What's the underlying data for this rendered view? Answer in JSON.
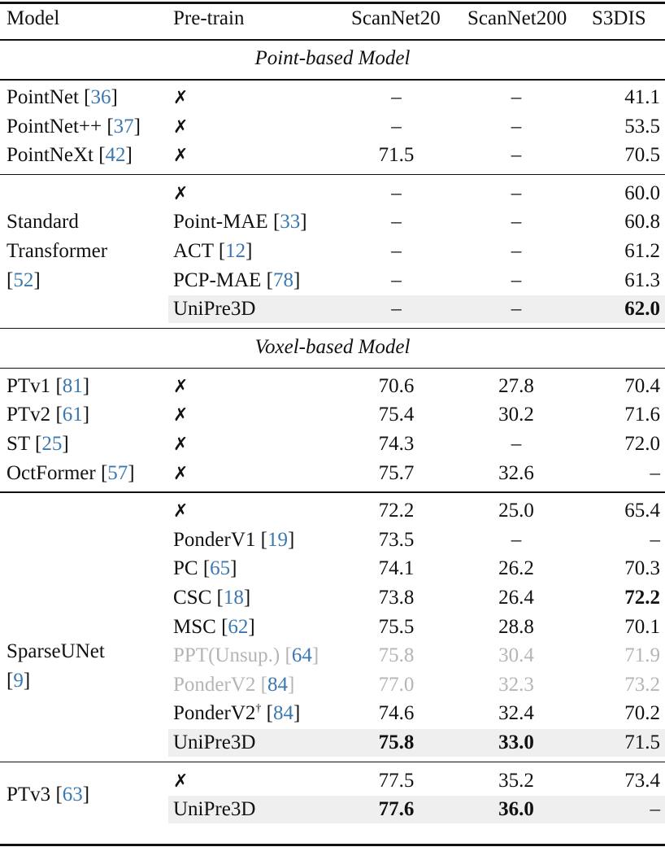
{
  "table": {
    "columns": [
      "Model",
      "Pre-train",
      "ScanNet20",
      "ScanNet200",
      "S3DIS"
    ],
    "sections": [
      {
        "title": "Point-based Model",
        "groups": [
          {
            "model": "PointNet",
            "cite": "36",
            "rows": [
              {
                "pretrain": "✗",
                "sn20": "–",
                "sn200": "–",
                "s3dis": "41.1"
              }
            ]
          },
          {
            "model": "PointNet++",
            "cite": "37",
            "rows": [
              {
                "pretrain": "✗",
                "sn20": "–",
                "sn200": "–",
                "s3dis": "53.5"
              }
            ]
          },
          {
            "model": "PointNeXt",
            "cite": "42",
            "rows": [
              {
                "pretrain": "✗",
                "sn20": "71.5",
                "sn200": "–",
                "s3dis": "70.5"
              }
            ]
          },
          {
            "model_lines": [
              "Standard",
              "Transformer"
            ],
            "cite": "52",
            "rows": [
              {
                "pretrain": "✗",
                "sn20": "–",
                "sn200": "–",
                "s3dis": "60.0"
              },
              {
                "pretrain": "Point-MAE",
                "pretrain_cite": "33",
                "sn20": "–",
                "sn200": "–",
                "s3dis": "60.8"
              },
              {
                "pretrain": "ACT",
                "pretrain_cite": "12",
                "sn20": "–",
                "sn200": "–",
                "s3dis": "61.2"
              },
              {
                "pretrain": "PCP-MAE",
                "pretrain_cite": "78",
                "sn20": "–",
                "sn200": "–",
                "s3dis": "61.3"
              },
              {
                "pretrain": "UniPre3D",
                "sn20": "–",
                "sn200": "–",
                "s3dis": "62.0",
                "highlight": true,
                "bold": [
                  "s3dis"
                ]
              }
            ]
          }
        ]
      },
      {
        "title": "Voxel-based Model",
        "groups": [
          {
            "model": "PTv1",
            "cite": "81",
            "rows": [
              {
                "pretrain": "✗",
                "sn20": "70.6",
                "sn200": "27.8",
                "s3dis": "70.4"
              }
            ]
          },
          {
            "model": "PTv2",
            "cite": "61",
            "rows": [
              {
                "pretrain": "✗",
                "sn20": "75.4",
                "sn200": "30.2",
                "s3dis": "71.6"
              }
            ]
          },
          {
            "model": "ST",
            "cite": "25",
            "rows": [
              {
                "pretrain": "✗",
                "sn20": "74.3",
                "sn200": "–",
                "s3dis": "72.0"
              }
            ]
          },
          {
            "model": "OctFormer",
            "cite": "57",
            "rows": [
              {
                "pretrain": "✗",
                "sn20": "75.7",
                "sn200": "32.6",
                "s3dis": "–"
              }
            ]
          },
          {
            "model": "SparseUNet",
            "cite": "9",
            "rows": [
              {
                "pretrain": "✗",
                "sn20": "72.2",
                "sn200": "25.0",
                "s3dis": "65.4"
              },
              {
                "pretrain": "PonderV1",
                "pretrain_cite": "19",
                "sn20": "73.5",
                "sn200": "–",
                "s3dis": "–"
              },
              {
                "pretrain": "PC",
                "pretrain_cite": "65",
                "sn20": "74.1",
                "sn200": "26.2",
                "s3dis": "70.3"
              },
              {
                "pretrain": "CSC",
                "pretrain_cite": "18",
                "sn20": "73.8",
                "sn200": "26.4",
                "s3dis": "72.2",
                "bold": [
                  "s3dis"
                ]
              },
              {
                "pretrain": "MSC",
                "pretrain_cite": "62",
                "sn20": "75.5",
                "sn200": "28.8",
                "s3dis": "70.1"
              },
              {
                "pretrain": "PPT(Unsup.)",
                "pretrain_cite": "64",
                "sn20": "75.8",
                "sn200": "30.4",
                "s3dis": "71.9",
                "gray": true
              },
              {
                "pretrain": "PonderV2",
                "pretrain_cite": "84",
                "sn20": "77.0",
                "sn200": "32.3",
                "s3dis": "73.2",
                "gray": true
              },
              {
                "pretrain": "PonderV2",
                "pretrain_sup": "†",
                "pretrain_cite": "84",
                "sn20": "74.6",
                "sn200": "32.4",
                "s3dis": "70.2"
              },
              {
                "pretrain": "UniPre3D",
                "sn20": "75.8",
                "sn200": "33.0",
                "s3dis": "71.5",
                "highlight": true,
                "bold": [
                  "sn20",
                  "sn200"
                ]
              }
            ]
          },
          {
            "model": "PTv3",
            "cite": "63",
            "rows": [
              {
                "pretrain": "✗",
                "sn20": "77.5",
                "sn200": "35.2",
                "s3dis": "73.4"
              },
              {
                "pretrain": "UniPre3D",
                "sn20": "77.6",
                "sn200": "36.0",
                "s3dis": "–",
                "highlight": true,
                "bold": [
                  "sn20",
                  "sn200"
                ]
              }
            ]
          }
        ]
      }
    ]
  },
  "colors": {
    "citation": "#3b78b0",
    "gray_text": "#b5b5b5",
    "highlight_bg": "#efefef"
  }
}
